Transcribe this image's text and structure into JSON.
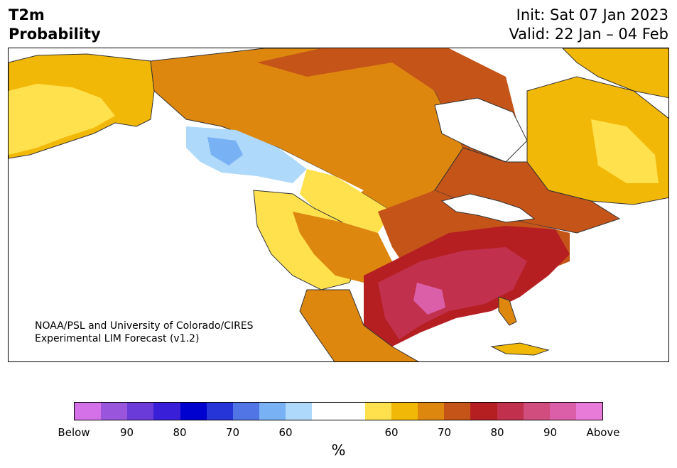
{
  "title": {
    "line1": "T2m",
    "line2": "Probability",
    "init": "Init: Sat 07 Jan 2023",
    "valid": "Valid: 22 Jan – 04 Feb"
  },
  "credit": {
    "line1": "NOAA/PSL and University of Colorado/CIRES",
    "line2": "Experimental LIM Forecast (v1.2)"
  },
  "colorbar": {
    "colors": [
      "#d470e8",
      "#9a55dd",
      "#6a3bd8",
      "#3a1fd8",
      "#0000cf",
      "#2535d8",
      "#5275e6",
      "#78b2f5",
      "#aed9fa",
      "#ffffff",
      "#ffffff",
      "#ffe14d",
      "#f2b808",
      "#de870f",
      "#c55419",
      "#b51f22",
      "#c1314d",
      "#d04d7e",
      "#db5fa8",
      "#e87ad8"
    ],
    "tick_labels": [
      "Below",
      "90",
      "80",
      "70",
      "60",
      "60",
      "70",
      "80",
      "90",
      "Above"
    ],
    "unit": "%"
  },
  "map_colors": {
    "land_outline": "#333333",
    "water": "#ffffff"
  }
}
